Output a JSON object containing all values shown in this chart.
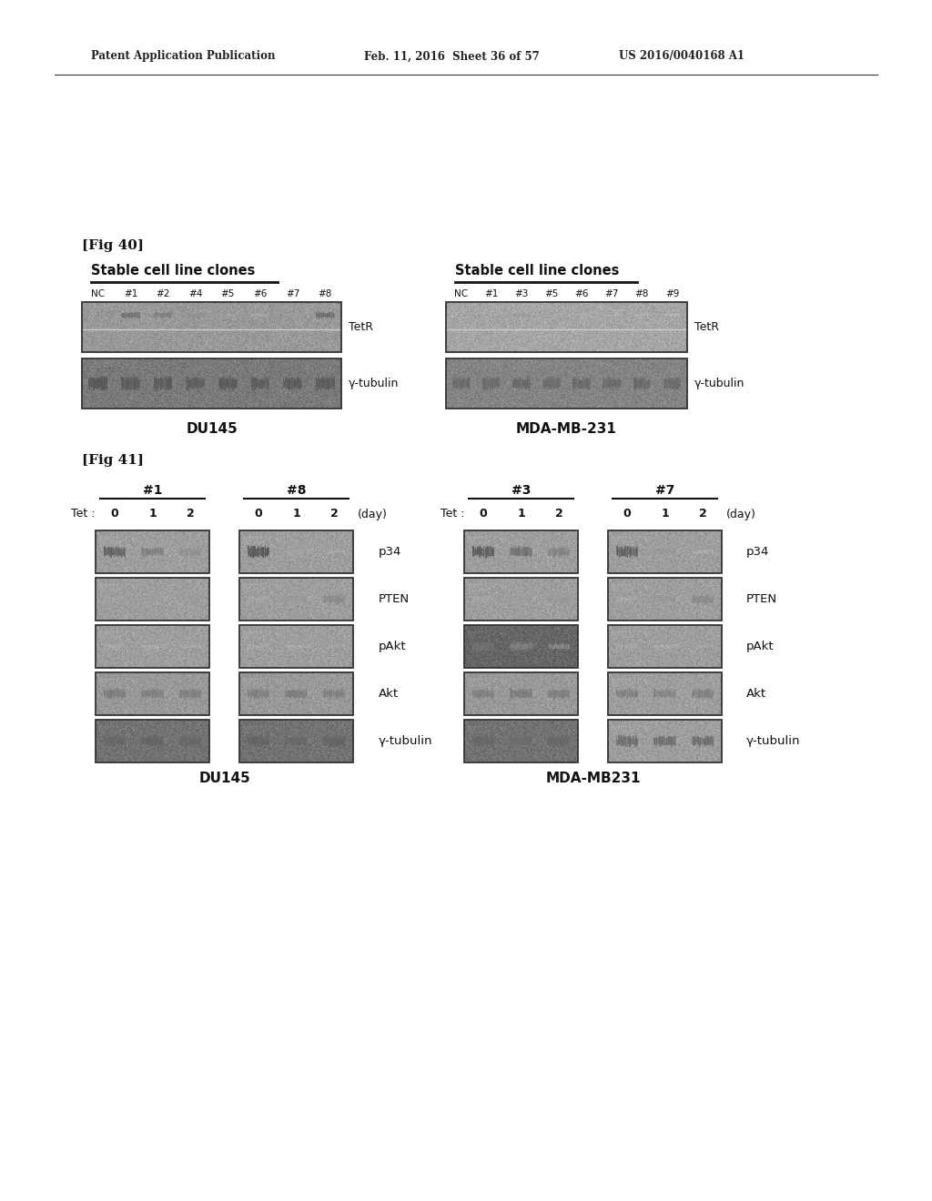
{
  "bg_color": "#ffffff",
  "header_left": "Patent Application Publication",
  "header_mid": "Feb. 11, 2016  Sheet 36 of 57",
  "header_right": "US 2016/0040168 A1",
  "fig40_label": "[Fig 40]",
  "fig41_label": "[Fig 41]",
  "fig40_left_title": "Stable cell line clones",
  "fig40_left_lanes": [
    "NC",
    "#1",
    "#2",
    "#4",
    "#5",
    "#6",
    "#7",
    "#8"
  ],
  "fig40_left_cellline": "DU145",
  "fig40_right_title": "Stable cell line clones",
  "fig40_right_lanes": [
    "NC",
    "#1",
    "#3",
    "#5",
    "#6",
    "#7",
    "#8",
    "#9"
  ],
  "fig40_right_cellline": "MDA-MB-231",
  "fig41_left_g1": "#1",
  "fig41_left_g2": "#8",
  "fig41_right_g1": "#3",
  "fig41_right_g2": "#7",
  "fig41_left_cellline": "DU145",
  "fig41_right_cellline": "MDA-MB231",
  "row_labels_41": [
    "p34",
    "PTEN",
    "pAkt",
    "Akt",
    "γ-tubulin"
  ]
}
